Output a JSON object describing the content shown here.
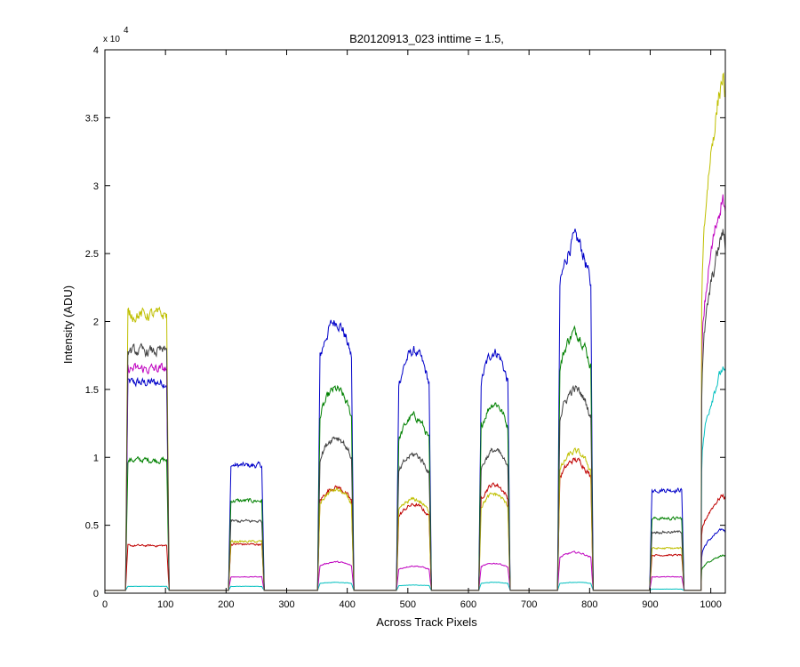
{
  "chart_data": {
    "type": "line",
    "title": "B20120913_023 inttime = 1.5,",
    "xlabel": "Across Track Pixels",
    "ylabel": "Intensity (ADU)",
    "y_exponent_label": "x 10",
    "y_exponent_power": "4",
    "xlim": [
      0,
      1024
    ],
    "ylim": [
      0,
      40000
    ],
    "xticks": [
      0,
      100,
      200,
      300,
      400,
      500,
      600,
      700,
      800,
      900,
      1000
    ],
    "yticks": [
      0,
      5000,
      10000,
      15000,
      20000,
      25000,
      30000,
      35000,
      40000
    ],
    "ytick_labels": [
      "0",
      "0.5",
      "1",
      "1.5",
      "2",
      "2.5",
      "3",
      "3.5",
      "4"
    ],
    "grid": false,
    "baseline": 200,
    "segments": [
      {
        "x0": 35,
        "x1": 105,
        "shape": "flat"
      },
      {
        "x0": 205,
        "x1": 262,
        "shape": "flat"
      },
      {
        "x0": 352,
        "x1": 410,
        "shape": "dome"
      },
      {
        "x0": 482,
        "x1": 538,
        "shape": "dome"
      },
      {
        "x0": 618,
        "x1": 668,
        "shape": "dome"
      },
      {
        "x0": 748,
        "x1": 805,
        "shape": "dome"
      },
      {
        "x0": 900,
        "x1": 955,
        "shape": "flat"
      },
      {
        "x0": 985,
        "x1": 1024,
        "shape": "rise"
      }
    ],
    "series": [
      {
        "color": "#0000c8",
        "levels": [
          15500,
          9400,
          20000,
          17800,
          17800,
          26000,
          7600,
          4700
        ]
      },
      {
        "color": "#008000",
        "levels": [
          9800,
          6800,
          15000,
          13000,
          14000,
          19200,
          5500,
          2800
        ]
      },
      {
        "color": "#bf0000",
        "levels": [
          3500,
          3600,
          7800,
          6500,
          8000,
          9800,
          2800,
          7200
        ]
      },
      {
        "color": "#00bfbf",
        "levels": [
          500,
          500,
          800,
          600,
          800,
          800,
          300,
          16500
        ]
      },
      {
        "color": "#bf00bf",
        "levels": [
          16500,
          1200,
          2300,
          2000,
          2200,
          3000,
          1200,
          29200
        ]
      },
      {
        "color": "#bfbf00",
        "levels": [
          20500,
          3800,
          7600,
          6900,
          7300,
          10400,
          3300,
          38000
        ]
      },
      {
        "color": "#404040",
        "levels": [
          17800,
          5300,
          11500,
          10200,
          10500,
          15000,
          4500,
          26500
        ]
      }
    ]
  }
}
